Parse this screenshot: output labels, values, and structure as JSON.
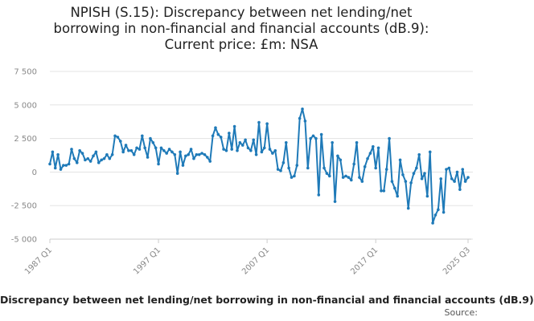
{
  "chart_data": {
    "type": "line",
    "title_lines": [
      "NPISH (S.15): Discrepancy between net lending/net",
      "borrowing in non-financial and financial accounts (dB.9):",
      "Current price: £m: NSA"
    ],
    "legend_text": "Discrepancy between net lending/net borrowing in non-financial and financial accounts (dB.9)",
    "source_label": "Source:",
    "y_ticks": [
      7500,
      5000,
      2500,
      0,
      -2500,
      -5000
    ],
    "y_tick_labels": [
      "7 500",
      "5 000",
      "2 500",
      "0",
      "-2 500",
      "-5 000"
    ],
    "ylim": [
      -5000,
      7500
    ],
    "x_ticks": [
      "1987 Q1",
      "1997 Q1",
      "2007 Q1",
      "2017 Q1",
      "2025 Q3"
    ],
    "x_range_years": [
      1987.0,
      2025.5
    ],
    "grid": "horizontal",
    "line_color": "#1f7ab8",
    "series": [
      {
        "values": [
          600,
          1500,
          300,
          1300,
          200,
          500,
          500,
          600,
          1700,
          1000,
          700,
          1600,
          1400,
          900,
          1000,
          800,
          1200,
          1500,
          700,
          900,
          1000,
          1300,
          1000,
          1300,
          2700,
          2600,
          2300,
          1500,
          2000,
          1600,
          1600,
          1300,
          1800,
          1700,
          2700,
          1800,
          1100,
          2500,
          2200,
          1800,
          600,
          1800,
          1600,
          1400,
          1700,
          1500,
          1300,
          -100,
          1500,
          500,
          1200,
          1300,
          1700,
          1000,
          1300,
          1300,
          1400,
          1300,
          1100,
          800,
          2700,
          3300,
          2800,
          2600,
          1700,
          1600,
          2900,
          1700,
          3400,
          1600,
          2200,
          2000,
          2400,
          1800,
          1600,
          2400,
          1300,
          3700,
          1500,
          1800,
          3600,
          1700,
          1400,
          1600,
          200,
          100,
          700,
          2200,
          300,
          -400,
          -300,
          500,
          4000,
          4700,
          3800,
          300,
          2500,
          2700,
          2500,
          -1700,
          2800,
          300,
          -100,
          -300,
          2200,
          -2200,
          1200,
          900,
          -400,
          -300,
          -400,
          -600,
          600,
          2200,
          -400,
          -700,
          400,
          1000,
          1400,
          1900,
          300,
          1800,
          -1400,
          -1400,
          200,
          2500,
          -700,
          -1200,
          -1800,
          900,
          -200,
          -700,
          -2700,
          -800,
          -100,
          300,
          1300,
          -500,
          -100,
          -1800,
          1500,
          -3800,
          -3200,
          -2800,
          -500,
          -3000,
          200,
          300,
          -500,
          -700,
          0,
          -1300,
          200,
          -700,
          -400
        ]
      }
    ]
  }
}
